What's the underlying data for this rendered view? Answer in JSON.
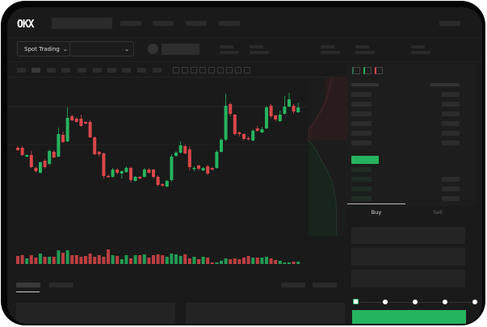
{
  "header": {
    "logo": "OKX"
  },
  "toolbar": {
    "trading_mode": "Spot Trading",
    "pair_select": ""
  },
  "trade_panel": {
    "tabs": [
      {
        "label": "Buy",
        "active": true
      },
      {
        "label": "Sell",
        "active": false
      }
    ],
    "slider_value_percent": 0,
    "slider_stops": 5
  },
  "colors": {
    "up": "#26b35f",
    "down": "#d9474a",
    "background": "#1a1a1a",
    "accent": "#26b35f"
  },
  "chart_data": {
    "type": "candlestick",
    "title": "",
    "xlabel": "",
    "ylabel": "",
    "candles": [
      [
        58,
        60,
        54,
        55
      ],
      [
        58,
        60,
        48,
        49
      ],
      [
        47,
        50,
        46,
        49
      ],
      [
        49,
        54,
        33,
        34
      ],
      [
        33,
        35,
        27,
        29
      ],
      [
        27,
        41,
        26,
        40
      ],
      [
        42,
        44,
        32,
        34
      ],
      [
        38,
        56,
        37,
        54
      ],
      [
        53,
        55,
        45,
        46
      ],
      [
        47,
        83,
        46,
        75
      ],
      [
        74,
        78,
        64,
        65
      ],
      [
        66,
        108,
        65,
        95
      ],
      [
        97,
        99,
        91,
        92
      ],
      [
        94,
        96,
        89,
        90
      ],
      [
        94,
        99,
        84,
        85
      ],
      [
        90,
        91,
        87,
        88
      ],
      [
        90,
        92,
        70,
        71
      ],
      [
        71,
        72,
        49,
        50
      ],
      [
        53,
        54,
        47,
        50
      ],
      [
        51,
        52,
        20,
        23
      ],
      [
        23,
        25,
        21,
        22
      ],
      [
        22,
        33,
        21,
        31
      ],
      [
        31,
        33,
        25,
        27
      ],
      [
        26,
        30,
        20,
        29
      ],
      [
        28,
        35,
        27,
        33
      ],
      [
        33,
        35,
        15,
        18
      ],
      [
        17,
        23,
        16,
        22
      ],
      [
        22,
        23,
        19,
        20
      ],
      [
        22,
        33,
        21,
        31
      ],
      [
        31,
        33,
        26,
        27
      ],
      [
        31,
        32,
        20,
        22
      ],
      [
        22,
        24,
        10,
        12
      ],
      [
        13,
        14,
        10,
        11
      ],
      [
        10,
        18,
        9,
        17
      ],
      [
        18,
        50,
        16,
        47
      ],
      [
        48,
        54,
        47,
        52
      ],
      [
        52,
        66,
        51,
        61
      ],
      [
        60,
        62,
        50,
        51
      ],
      [
        56,
        60,
        30,
        34
      ],
      [
        32,
        35,
        29,
        33
      ],
      [
        36,
        37,
        30,
        32
      ],
      [
        30,
        34,
        29,
        33
      ],
      [
        35,
        37,
        24,
        26
      ],
      [
        33,
        34,
        30,
        31
      ],
      [
        33,
        55,
        32,
        53
      ],
      [
        53,
        70,
        52,
        68
      ],
      [
        68,
        125,
        66,
        110
      ],
      [
        112,
        114,
        97,
        100
      ],
      [
        99,
        100,
        73,
        75
      ],
      [
        77,
        78,
        72,
        75
      ],
      [
        75,
        76,
        67,
        69
      ],
      [
        70,
        72,
        67,
        69
      ],
      [
        67,
        81,
        66,
        79
      ],
      [
        82,
        85,
        78,
        79
      ],
      [
        77,
        84,
        76,
        81
      ],
      [
        82,
        110,
        81,
        108
      ],
      [
        110,
        112,
        95,
        97
      ],
      [
        98,
        99,
        91,
        93
      ],
      [
        91,
        104,
        90,
        99
      ],
      [
        100,
        122,
        99,
        109
      ],
      [
        109,
        126,
        108,
        118
      ],
      [
        110,
        112,
        100,
        103
      ],
      [
        102,
        114,
        101,
        108
      ]
    ],
    "volume": [
      10,
      11,
      7,
      11,
      8,
      13,
      9,
      9,
      9,
      17,
      14,
      17,
      11,
      11,
      9,
      10,
      13,
      9,
      11,
      9,
      18,
      11,
      10,
      6,
      11,
      7,
      11,
      11,
      12,
      8,
      11,
      12,
      11,
      9,
      13,
      12,
      10,
      12,
      7,
      9,
      6,
      9,
      8,
      2,
      2,
      4,
      7,
      6,
      7,
      6,
      8,
      10,
      8,
      8,
      8,
      9,
      7,
      5,
      4,
      2,
      2,
      3,
      3
    ]
  }
}
